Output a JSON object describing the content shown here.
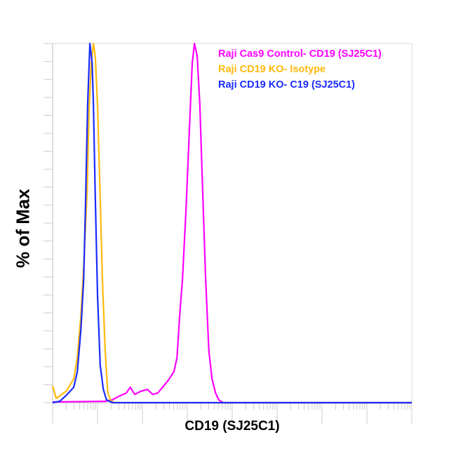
{
  "chart_data": {
    "type": "line",
    "title": "",
    "xlabel": "CD19 (SJ25C1)",
    "ylabel": "% of Max",
    "xscale": "log (decades)",
    "xlim": [
      0,
      8
    ],
    "ylim": [
      0,
      100
    ],
    "grid": false,
    "legend_position": "top-right",
    "series": [
      {
        "name": "Raji Cas9 Control- CD19 (SJ25C1)",
        "color": "#ff00ff",
        "x": [
          0,
          1.17,
          1.33,
          1.48,
          1.64,
          1.73,
          1.83,
          1.95,
          2.11,
          2.23,
          2.34,
          2.45,
          2.58,
          2.7,
          2.77,
          2.83,
          2.89,
          2.97,
          3.05,
          3.11,
          3.16,
          3.22,
          3.28,
          3.34,
          3.41,
          3.48,
          3.55,
          3.63,
          3.7,
          3.8,
          8
        ],
        "y": [
          0.2,
          0.4,
          0.8,
          1.8,
          2.7,
          4.3,
          2.3,
          3.1,
          3.7,
          2.3,
          2.7,
          4.3,
          6.3,
          8.6,
          12.5,
          24.2,
          34,
          53.5,
          77,
          94.5,
          100,
          96.5,
          82.8,
          59.4,
          34,
          14.5,
          6.6,
          2.7,
          0.8,
          0,
          0
        ]
      },
      {
        "name": "Raji CD19 KO- Isotype",
        "color": "#ffb90f",
        "x": [
          0,
          0.08,
          0.31,
          0.47,
          0.55,
          0.63,
          0.7,
          0.77,
          0.81,
          0.86,
          0.91,
          0.95,
          1.0,
          1.05,
          1.11,
          1.17,
          1.23,
          1.3,
          1.41,
          2.73,
          8
        ],
        "y": [
          4.7,
          1.2,
          3.3,
          6.6,
          12.5,
          24.2,
          39.8,
          59.4,
          80.9,
          94.5,
          100,
          96.5,
          82.8,
          61.3,
          34,
          14.5,
          2.7,
          0.4,
          0,
          0,
          0
        ]
      },
      {
        "name": "Raji CD19 KO- C19 (SJ25C1)",
        "color": "#1a2bff",
        "x": [
          0,
          0.16,
          0.31,
          0.47,
          0.55,
          0.63,
          0.69,
          0.73,
          0.78,
          0.83,
          0.88,
          0.91,
          0.95,
          1.0,
          1.06,
          1.13,
          1.2,
          1.33,
          8
        ],
        "y": [
          0,
          0.4,
          2.1,
          4.3,
          8.6,
          20.3,
          34,
          53.5,
          82.8,
          100,
          94.7,
          82.8,
          57.4,
          30.1,
          10.5,
          3.7,
          0.8,
          0,
          0
        ]
      }
    ]
  }
}
